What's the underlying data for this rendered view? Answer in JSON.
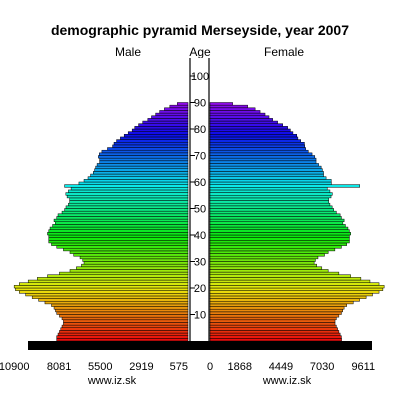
{
  "chart_data": {
    "type": "bar",
    "title": "demographic pyramid Merseyside, year 2007",
    "left_label": "Male",
    "center_label": "Age",
    "right_label": "Female",
    "male_axis_ticks": [
      "10900",
      "8081",
      "5500",
      "2919",
      "575"
    ],
    "female_axis_ticks": [
      "0",
      "1868",
      "4449",
      "7030",
      "9611"
    ],
    "age_ticks": [
      "10",
      "20",
      "30",
      "40",
      "50",
      "60",
      "70",
      "80",
      "90",
      "100"
    ],
    "xlim": [
      0,
      11475
    ],
    "age_range": [
      0,
      100
    ],
    "source_left": "www.iz.sk",
    "source_right": "www.iz.sk",
    "series": [
      {
        "name": "Male",
        "values": [
          8233,
          8233,
          8150,
          8060,
          7980,
          7900,
          7810,
          7810,
          7900,
          8060,
          8230,
          8310,
          8400,
          8560,
          8970,
          9370,
          9770,
          10180,
          10580,
          10820,
          10900,
          10580,
          10020,
          9450,
          8810,
          8060,
          7400,
          7000,
          6680,
          6520,
          6600,
          6770,
          7170,
          7400,
          7810,
          8230,
          8560,
          8730,
          8730,
          8730,
          8810,
          8730,
          8650,
          8490,
          8320,
          8400,
          8230,
          8150,
          7900,
          7740,
          7650,
          7500,
          7420,
          7420,
          7580,
          7660,
          7500,
          7330,
          7740,
          6840,
          6520,
          6270,
          6110,
          5940,
          5860,
          5790,
          5700,
          5540,
          5540,
          5620,
          5560,
          5400,
          5050,
          4730,
          4640,
          4480,
          4240,
          4000,
          3750,
          3500,
          3340,
          3100,
          2840,
          2520,
          2290,
          2030,
          1780,
          1480,
          1140,
          670,
          0,
          0,
          0,
          0,
          0,
          0,
          0,
          0,
          0,
          0,
          0
        ]
      },
      {
        "name": "Female",
        "values": [
          8250,
          8240,
          8160,
          8080,
          8000,
          7920,
          7840,
          7840,
          7920,
          8080,
          8240,
          8320,
          8410,
          8570,
          8980,
          9380,
          9790,
          10190,
          10600,
          10840,
          10920,
          10600,
          10030,
          9460,
          8820,
          8080,
          7410,
          7010,
          6690,
          6530,
          6610,
          6770,
          7180,
          7410,
          7830,
          8240,
          8570,
          8740,
          8740,
          8740,
          8820,
          8740,
          8650,
          8490,
          8330,
          8410,
          8240,
          8160,
          7920,
          7760,
          7660,
          7520,
          7440,
          7440,
          7590,
          7670,
          7520,
          7350,
          9390,
          7610,
          7600,
          7280,
          7120,
          7120,
          7050,
          6970,
          6810,
          6650,
          6650,
          6570,
          6400,
          6160,
          6000,
          5940,
          5920,
          5690,
          5510,
          5440,
          5200,
          5040,
          4870,
          4560,
          4240,
          3930,
          3700,
          3450,
          3140,
          2830,
          2360,
          1420,
          0,
          0,
          0,
          0,
          0,
          0,
          0,
          0,
          0,
          0,
          0
        ]
      }
    ]
  }
}
